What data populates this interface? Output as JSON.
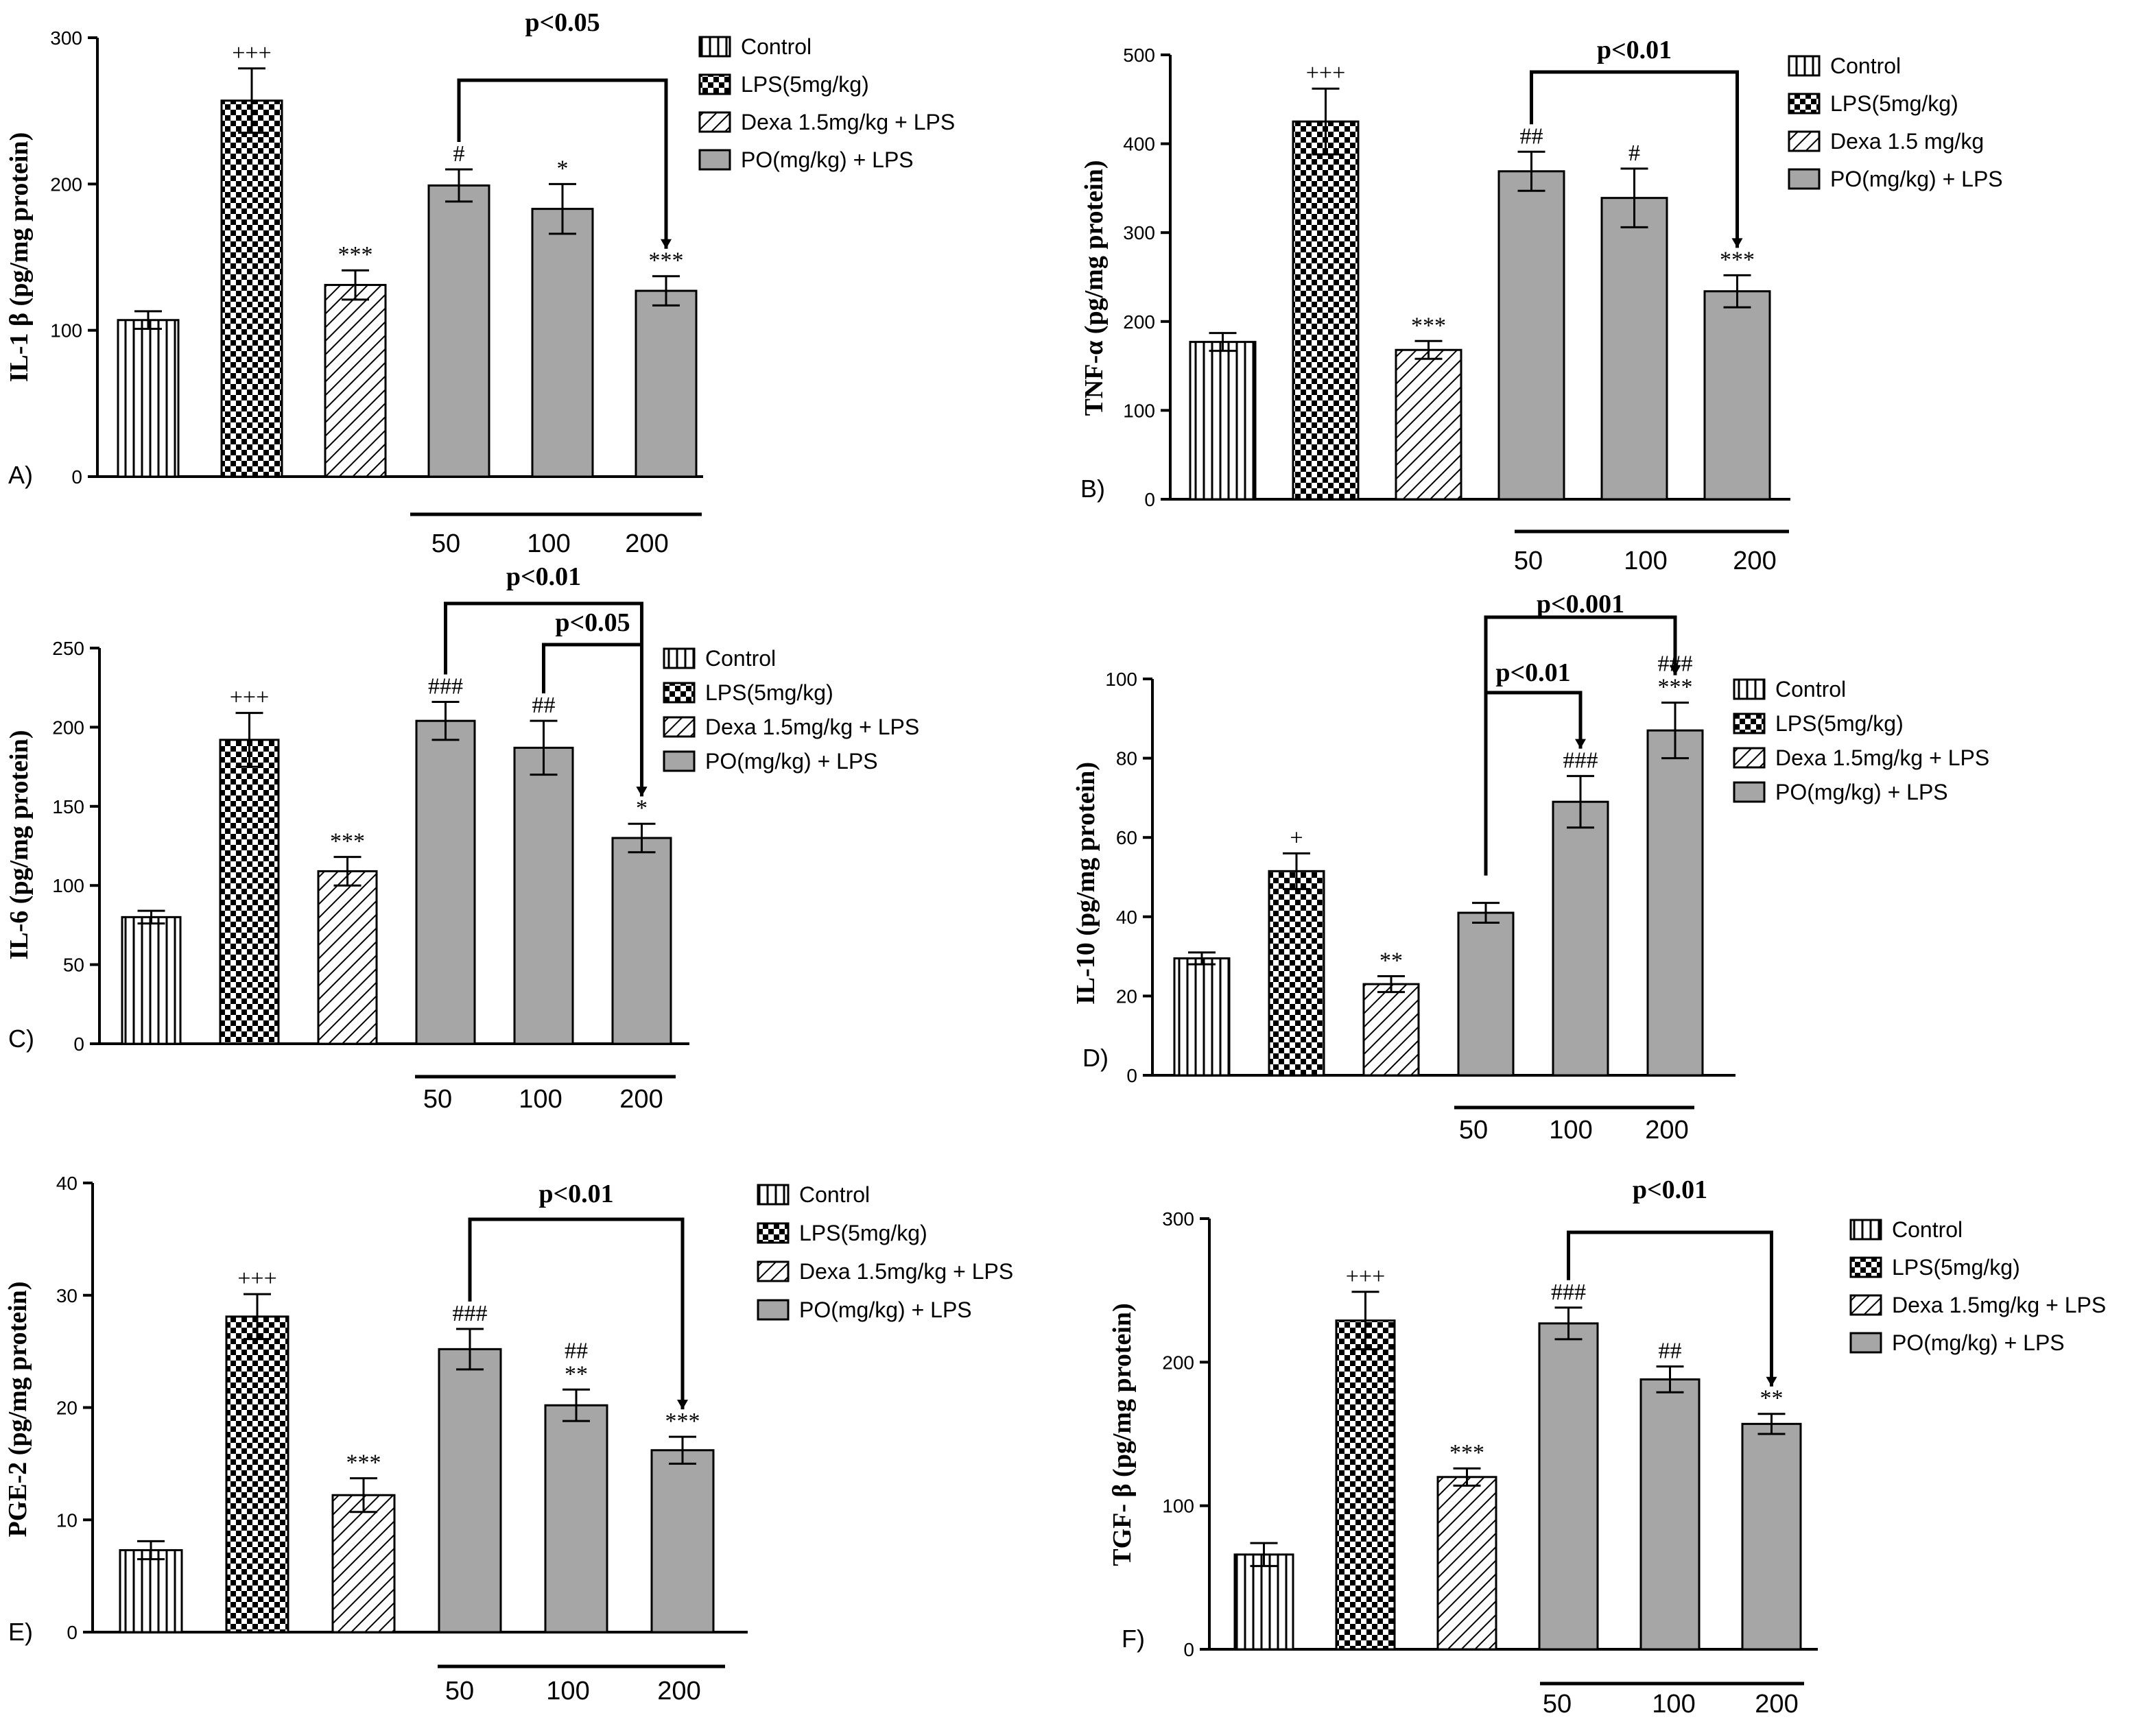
{
  "chart_data": [
    {
      "panel": "A)",
      "type": "bar",
      "ylabel": "IL-1 β (pg/mg protein)",
      "ylim": [
        0,
        300
      ],
      "yticks": [
        0,
        100,
        200,
        300
      ],
      "categories": [
        "Control",
        "LPS(5mg/kg)",
        "Dexa 1.5mg/kg + LPS",
        "PO 50",
        "PO 100",
        "PO 200"
      ],
      "values": [
        107,
        257,
        131,
        199,
        183,
        127
      ],
      "errors": [
        6,
        22,
        10,
        11,
        17,
        10
      ],
      "significance": [
        "",
        "+++",
        "***",
        "#",
        "*",
        "***"
      ],
      "dose_labels": [
        "50",
        "100",
        "200"
      ],
      "brackets": [
        {
          "label": "p<0.05",
          "from": 3,
          "to": 5
        }
      ],
      "legend": [
        "Control",
        "LPS(5mg/kg)",
        "Dexa 1.5mg/kg + LPS",
        "PO(mg/kg) + LPS"
      ]
    },
    {
      "panel": "B)",
      "type": "bar",
      "ylabel": "TNF-α (pg/mg protein)",
      "ylim": [
        0,
        500
      ],
      "yticks": [
        0,
        100,
        200,
        300,
        400,
        500
      ],
      "categories": [
        "Control",
        "LPS(5mg/kg)",
        "Dexa 1.5 mg/kg",
        "PO 50",
        "PO 100",
        "PO 200"
      ],
      "values": [
        177,
        425,
        168,
        369,
        339,
        234
      ],
      "errors": [
        10,
        37,
        10,
        22,
        33,
        18
      ],
      "significance": [
        "",
        "+++",
        "***",
        "##",
        "#",
        "***"
      ],
      "dose_labels": [
        "50",
        "100",
        "200"
      ],
      "brackets": [
        {
          "label": "p<0.01",
          "from": 3,
          "to": 5
        }
      ],
      "legend": [
        "Control",
        "LPS(5mg/kg)",
        "Dexa 1.5 mg/kg",
        "PO(mg/kg) + LPS"
      ]
    },
    {
      "panel": "C)",
      "type": "bar",
      "ylabel": "IL-6 (pg/mg protein)",
      "ylim": [
        0,
        250
      ],
      "yticks": [
        0,
        50,
        100,
        150,
        200,
        250
      ],
      "categories": [
        "Control",
        "LPS(5mg/kg)",
        "Dexa 1.5mg/kg + LPS",
        "PO 50",
        "PO 100",
        "PO 200"
      ],
      "values": [
        80,
        192,
        109,
        204,
        187,
        130
      ],
      "errors": [
        4,
        17,
        9,
        12,
        17,
        9
      ],
      "significance": [
        "",
        "+++",
        "***",
        "###",
        "##",
        "*"
      ],
      "dose_labels": [
        "50",
        "100",
        "200"
      ],
      "brackets": [
        {
          "label": "p<0.01",
          "from": 3,
          "to": 5
        },
        {
          "label": "p<0.05",
          "from": 4,
          "to": 5
        }
      ],
      "legend": [
        "Control",
        "LPS(5mg/kg)",
        "Dexa 1.5mg/kg + LPS",
        "PO(mg/kg) + LPS"
      ]
    },
    {
      "panel": "D)",
      "type": "bar",
      "ylabel": "IL-10 (pg/mg protein)",
      "ylim": [
        0,
        100
      ],
      "yticks": [
        0,
        20,
        40,
        60,
        80,
        100
      ],
      "categories": [
        "Control",
        "LPS(5mg/kg)",
        "Dexa 1.5mg/kg + LPS",
        "PO 50",
        "PO 100",
        "PO 200"
      ],
      "values": [
        29.5,
        51.5,
        23,
        41,
        69,
        87
      ],
      "errors": [
        1.5,
        4.5,
        2,
        2.5,
        6.5,
        7
      ],
      "significance": [
        "",
        "+",
        "**",
        "",
        "###",
        "###\n***"
      ],
      "dose_labels": [
        "50",
        "100",
        "200"
      ],
      "brackets": [
        {
          "label": "p<0.001",
          "from": 3,
          "to": 5
        },
        {
          "label": "p<0.01",
          "from": 3,
          "to": 4
        }
      ],
      "legend": [
        "Control",
        "LPS(5mg/kg)",
        "Dexa 1.5mg/kg + LPS",
        "PO(mg/kg) + LPS"
      ]
    },
    {
      "panel": "E)",
      "type": "bar",
      "ylabel": "PGE-2 (pg/mg protein)",
      "ylim": [
        0,
        40
      ],
      "yticks": [
        0,
        10,
        20,
        30,
        40
      ],
      "categories": [
        "Control",
        "LPS(5mg/kg)",
        "Dexa 1.5mg/kg + LPS",
        "PO 50",
        "PO 100",
        "PO 200"
      ],
      "values": [
        7.3,
        28.1,
        12.2,
        25.2,
        20.2,
        16.2
      ],
      "errors": [
        0.8,
        2,
        1.5,
        1.8,
        1.4,
        1.2
      ],
      "significance": [
        "",
        "+++",
        "***",
        "###",
        "##\n**",
        "***"
      ],
      "dose_labels": [
        "50",
        "100",
        "200"
      ],
      "brackets": [
        {
          "label": "p<0.01",
          "from": 3,
          "to": 5
        }
      ],
      "legend": [
        "Control",
        "LPS(5mg/kg)",
        "Dexa 1.5mg/kg + LPS",
        "PO(mg/kg) + LPS"
      ]
    },
    {
      "panel": "F)",
      "type": "bar",
      "ylabel": "TGF- β (pg/mg protein)",
      "ylim": [
        0,
        300
      ],
      "yticks": [
        0,
        100,
        200,
        300
      ],
      "categories": [
        "Control",
        "LPS(5mg/kg)",
        "Dexa 1.5mg/kg + LPS",
        "PO 50",
        "PO 100",
        "PO 200"
      ],
      "values": [
        66,
        229,
        120,
        227,
        188,
        157
      ],
      "errors": [
        8,
        20,
        6,
        11,
        9,
        7
      ],
      "significance": [
        "",
        "+++",
        "***",
        "###",
        "##",
        "**"
      ],
      "dose_labels": [
        "50",
        "100",
        "200"
      ],
      "brackets": [
        {
          "label": "p<0.01",
          "from": 3,
          "to": 5
        }
      ],
      "legend": [
        "Control",
        "LPS(5mg/kg)",
        "Dexa 1.5mg/kg + LPS",
        "PO(mg/kg) + LPS"
      ]
    }
  ],
  "colors": {
    "bar_outline": "#000000",
    "po_fill": "#a6a6a6",
    "pattern_ink": "#000000"
  }
}
